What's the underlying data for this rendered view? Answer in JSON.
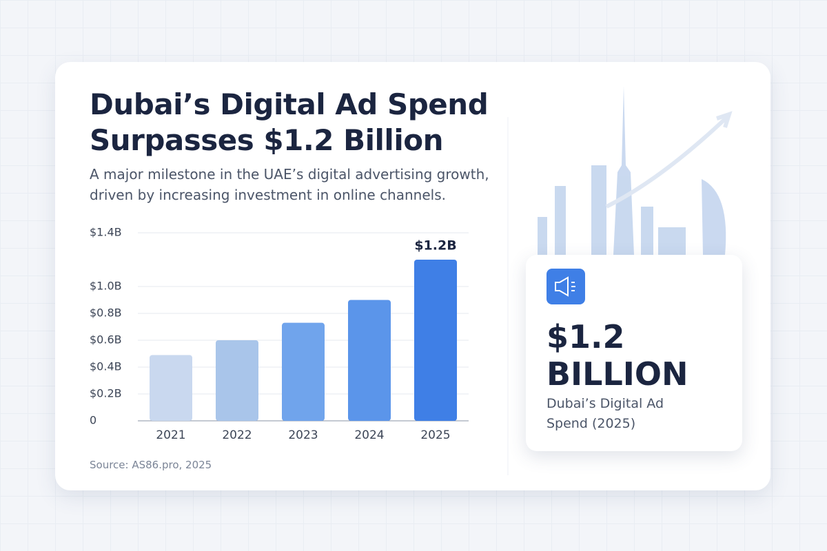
{
  "chart_data": {
    "type": "bar",
    "title": "Dubai’s Digital Ad Spend Surpasses $1.2 Billion",
    "subtitle": "A major milestone in the UAE’s digital advertising growth, driven by increasing investment in online channels.",
    "source": "Source: AS86.pro, 2025",
    "categories": [
      "2021",
      "2022",
      "2023",
      "2024",
      "2025"
    ],
    "values": [
      0.49,
      0.6,
      0.73,
      0.9,
      1.2
    ],
    "value_labels": [
      null,
      null,
      null,
      null,
      "$1.2B"
    ],
    "colors": [
      "#c9d8ef",
      "#a9c5ea",
      "#70a4ec",
      "#5b95ea",
      "#3f7fe6"
    ],
    "ylim": [
      0,
      1.4
    ],
    "yticks": [
      0,
      {
        "value": 0.2,
        "label": "$0.2B"
      },
      {
        "value": 0.4,
        "label": "$0.4B"
      },
      {
        "value": 0.6,
        "label": "$0.6B"
      },
      {
        "value": 0.8,
        "label": "$0.8B"
      },
      {
        "value": 1.0,
        "label": "$1.0B"
      },
      {
        "value": 1.4,
        "label": "$1.4B"
      }
    ],
    "grid": true
  },
  "card": {
    "figure": "$1.2 BILLION",
    "caption": "Dubai’s Digital Ad Spend (2025)"
  }
}
